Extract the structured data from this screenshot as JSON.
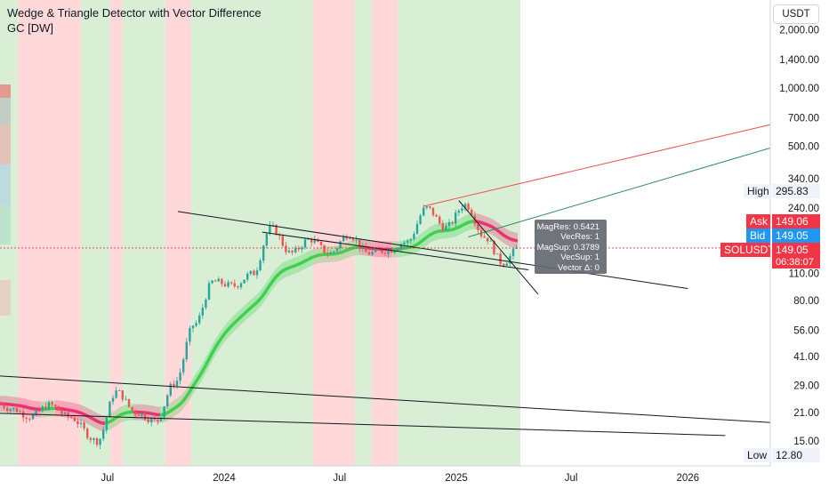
{
  "header": {
    "title": "Wedge & Triangle Detector with Vector Difference",
    "subtitle": "GC [DW]"
  },
  "price_axis": {
    "currency": "USDT",
    "ticks": [
      {
        "label": "2,000.00",
        "value": 2000
      },
      {
        "label": "1,400.00",
        "value": 1400
      },
      {
        "label": "1,000.00",
        "value": 1000
      },
      {
        "label": "700.00",
        "value": 700
      },
      {
        "label": "500.00",
        "value": 500
      },
      {
        "label": "340.00",
        "value": 340
      },
      {
        "label": "240.00",
        "value": 240
      },
      {
        "label": "110.00",
        "value": 110
      },
      {
        "label": "80.00",
        "value": 80
      },
      {
        "label": "56.00",
        "value": 56
      },
      {
        "label": "41.00",
        "value": 41
      },
      {
        "label": "29.00",
        "value": 29
      },
      {
        "label": "21.00",
        "value": 21
      },
      {
        "label": "15.00",
        "value": 15
      }
    ]
  },
  "time_axis": {
    "ticks": [
      "Jul",
      "2024",
      "Jul",
      "2025",
      "Jul",
      "2026"
    ]
  },
  "tags": {
    "high_label": "High",
    "high_value": "295.83",
    "ask_label": "Ask",
    "ask_value": "149.06",
    "bid_label": "Bid",
    "bid_value": "149.05",
    "symbol": "SOLUSDT",
    "last_price": "149.05",
    "countdown": "06:38:07",
    "low_label": "Low",
    "low_value": "12.80"
  },
  "tooltip": {
    "lines": [
      "MagRes: 0.5421",
      "VecRes: 1",
      "MagSup: 0.3789",
      "VecSup: 1",
      "Vector Δ: 0"
    ]
  },
  "colors": {
    "up_candle": "#26a69a",
    "down_candle": "#ef5350",
    "bull_bg": "#d8efd6",
    "bear_bg": "#ffd9d9",
    "support_band": "#2ecc40",
    "resistance_band": "#e91e63",
    "resistance_line": "#ef5350",
    "support_line": "#2e8b57",
    "wedge_line": "#131722",
    "ask": "#f23645",
    "bid": "#2196f3"
  },
  "chart_data": {
    "type": "candlestick",
    "symbol": "SOLUSDT",
    "timeframe": "W",
    "y_scale": "log",
    "ylim": [
      12,
      2300
    ],
    "high": 295.83,
    "low": 12.8,
    "last": 149.05,
    "ask": 149.06,
    "bid": 149.05,
    "x_range": [
      "2023-01-01",
      "2026-08-10"
    ],
    "candles_close": [
      {
        "date": "2023-01-01",
        "value": 24
      },
      {
        "date": "2023-02-01",
        "value": 22
      },
      {
        "date": "2023-03-01",
        "value": 20
      },
      {
        "date": "2023-04-01",
        "value": 23
      },
      {
        "date": "2023-05-01",
        "value": 20
      },
      {
        "date": "2023-06-15",
        "value": 15
      },
      {
        "date": "2023-07-15",
        "value": 27
      },
      {
        "date": "2023-08-15",
        "value": 21
      },
      {
        "date": "2023-09-15",
        "value": 19
      },
      {
        "date": "2023-10-15",
        "value": 30
      },
      {
        "date": "2023-11-15",
        "value": 60
      },
      {
        "date": "2023-12-15",
        "value": 100
      },
      {
        "date": "2024-01-15",
        "value": 95
      },
      {
        "date": "2024-02-15",
        "value": 110
      },
      {
        "date": "2024-03-15",
        "value": 190
      },
      {
        "date": "2024-04-15",
        "value": 140
      },
      {
        "date": "2024-05-15",
        "value": 165
      },
      {
        "date": "2024-06-15",
        "value": 140
      },
      {
        "date": "2024-07-15",
        "value": 175
      },
      {
        "date": "2024-08-15",
        "value": 140
      },
      {
        "date": "2024-09-15",
        "value": 145
      },
      {
        "date": "2024-10-15",
        "value": 160
      },
      {
        "date": "2024-11-15",
        "value": 240
      },
      {
        "date": "2024-12-15",
        "value": 190
      },
      {
        "date": "2025-01-15",
        "value": 250
      },
      {
        "date": "2025-02-15",
        "value": 170
      },
      {
        "date": "2025-03-15",
        "value": 125
      },
      {
        "date": "2025-04-10",
        "value": 149
      }
    ],
    "overlays": [
      {
        "name": "resistance trend",
        "points": [
          {
            "date": "2024-11-10",
            "value": 245
          },
          {
            "date": "2026-08-10",
            "value": 760
          }
        ]
      },
      {
        "name": "support trend",
        "points": [
          {
            "date": "2025-01-20",
            "value": 170
          },
          {
            "date": "2026-08-10",
            "value": 600
          }
        ]
      },
      {
        "name": "wedge upper",
        "points": [
          {
            "date": "2023-10-20",
            "value": 230
          },
          {
            "date": "2026-01-01",
            "value": 92
          }
        ]
      },
      {
        "name": "wedge lower",
        "points": [
          {
            "date": "2024-03-01",
            "value": 180
          },
          {
            "date": "2025-04-25",
            "value": 115
          }
        ]
      },
      {
        "name": "steep down",
        "points": [
          {
            "date": "2025-01-05",
            "value": 262
          },
          {
            "date": "2025-05-10",
            "value": 86
          }
        ]
      },
      {
        "name": "lower channel top",
        "points": [
          {
            "date": "2022-12-10",
            "value": 33
          },
          {
            "date": "2026-08-01",
            "value": 18
          }
        ]
      },
      {
        "name": "lower channel bottom",
        "points": [
          {
            "date": "2022-12-10",
            "value": 21
          },
          {
            "date": "2026-03-01",
            "value": 16
          }
        ]
      }
    ],
    "regimes": [
      {
        "state": "bull",
        "from": "2022-12-01",
        "to": "2023-02-10"
      },
      {
        "state": "bear",
        "from": "2023-02-10",
        "to": "2023-05-20"
      },
      {
        "state": "bull",
        "from": "2023-05-20",
        "to": "2023-07-05"
      },
      {
        "state": "bear",
        "from": "2023-07-05",
        "to": "2023-07-25"
      },
      {
        "state": "bull",
        "from": "2023-07-25",
        "to": "2023-09-30"
      },
      {
        "state": "bear",
        "from": "2023-09-30",
        "to": "2023-11-10"
      },
      {
        "state": "bull",
        "from": "2023-11-10",
        "to": "2024-05-20"
      },
      {
        "state": "bear",
        "from": "2024-05-20",
        "to": "2024-07-25"
      },
      {
        "state": "bull",
        "from": "2024-07-25",
        "to": "2024-08-20"
      },
      {
        "state": "bear",
        "from": "2024-08-20",
        "to": "2024-10-01"
      },
      {
        "state": "bull",
        "from": "2024-10-01",
        "to": "2025-04-12"
      }
    ]
  }
}
